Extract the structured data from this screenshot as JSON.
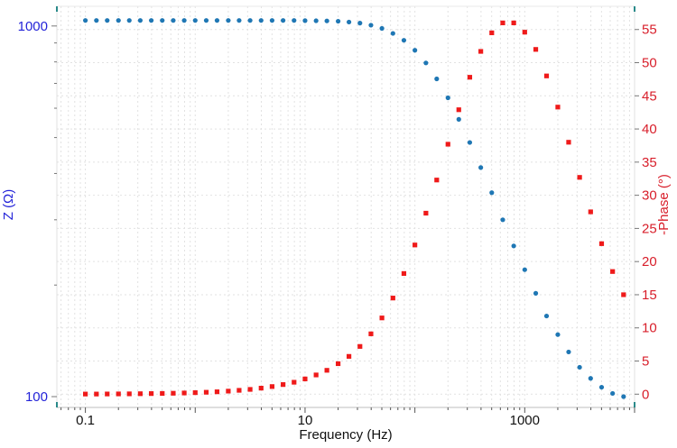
{
  "chart_data": {
    "type": "scatter",
    "xlabel": "Frequency (Hz)",
    "ylabel_left": "Z (Ω)",
    "ylabel_right": "-Phase (°)",
    "x_scale": "log",
    "x_lim": [
      0.055,
      10000
    ],
    "x_ticks": [
      0.1,
      10,
      1000
    ],
    "x_tick_labels": [
      "0.1",
      "10",
      "1000"
    ],
    "y_left_scale": "log",
    "y_left_lim": [
      93.5,
      1130
    ],
    "y_left_ticks": [
      100,
      1000
    ],
    "y_left_tick_labels": [
      "100",
      "1000"
    ],
    "y_right_lim": [
      -2.0,
      58.5
    ],
    "y_right_ticks": [
      0,
      5,
      10,
      15,
      20,
      25,
      30,
      35,
      40,
      45,
      50,
      55
    ],
    "y_right_tick_labels": [
      "0",
      "5",
      "10",
      "15",
      "20",
      "25",
      "30",
      "35",
      "40",
      "45",
      "50",
      "55"
    ],
    "grid": true,
    "colors": {
      "impedance": "#1f77b4",
      "phase": "#ef1a1a",
      "left_axis": "#2323d8",
      "right_axis": "#d81e2a",
      "frame": "#2a8a8a",
      "grid": "#e2e2e2"
    },
    "series": [
      {
        "axis": "left",
        "marker": "circle",
        "x": [
          0.1,
          0.126,
          0.158,
          0.2,
          0.251,
          0.316,
          0.398,
          0.501,
          0.631,
          0.794,
          1,
          1.26,
          1.58,
          2,
          2.51,
          3.16,
          3.98,
          5.01,
          6.31,
          7.94,
          10,
          12.6,
          15.8,
          20,
          25.1,
          31.6,
          39.8,
          50.1,
          63.1,
          79.4,
          100,
          126,
          158,
          200,
          251,
          316,
          398,
          501,
          631,
          794,
          1000,
          1260,
          1580,
          2000,
          2510,
          3160,
          3980,
          5010,
          6310,
          7940
        ],
        "y": [
          1035,
          1035,
          1035,
          1035,
          1035,
          1035,
          1035,
          1035,
          1035,
          1035,
          1035,
          1035,
          1035,
          1035,
          1035,
          1035,
          1035,
          1035,
          1035,
          1035,
          1034,
          1033,
          1032,
          1030,
          1025,
          1018,
          1005,
          985,
          955,
          915,
          860,
          795,
          720,
          640,
          560,
          485,
          415,
          355,
          300,
          255,
          220,
          190,
          165,
          147,
          132,
          120,
          112,
          106,
          102,
          100
        ]
      },
      {
        "axis": "right",
        "marker": "square",
        "x": [
          0.1,
          0.126,
          0.158,
          0.2,
          0.251,
          0.316,
          0.398,
          0.501,
          0.631,
          0.794,
          1,
          1.26,
          1.58,
          2,
          2.51,
          3.16,
          3.98,
          5.01,
          6.31,
          7.94,
          10,
          12.6,
          15.8,
          20,
          25.1,
          31.6,
          39.8,
          50.1,
          63.1,
          79.4,
          100,
          126,
          158,
          200,
          251,
          316,
          398,
          501,
          631,
          794,
          1000,
          1260,
          1580,
          2000,
          2510,
          3160,
          3980,
          5010,
          6310,
          7940
        ],
        "y": [
          0.02,
          0.02,
          0.03,
          0.04,
          0.05,
          0.07,
          0.09,
          0.11,
          0.14,
          0.18,
          0.23,
          0.29,
          0.36,
          0.46,
          0.58,
          0.72,
          0.91,
          1.15,
          1.45,
          1.8,
          2.3,
          2.9,
          3.6,
          4.6,
          5.7,
          7.2,
          9.1,
          11.5,
          14.5,
          18.2,
          22.5,
          27.3,
          32.3,
          37.7,
          42.9,
          47.8,
          51.7,
          54.5,
          56,
          56,
          54.6,
          52,
          48,
          43.3,
          38,
          32.7,
          27.5,
          22.7,
          18.5,
          15
        ]
      }
    ]
  }
}
